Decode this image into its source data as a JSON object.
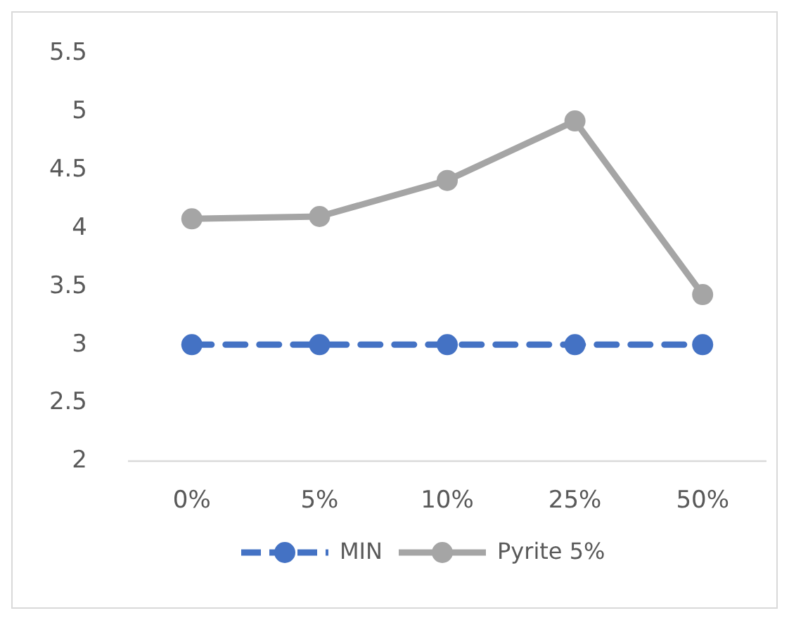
{
  "chart_data": {
    "type": "line",
    "categories": [
      "0%",
      "5%",
      "10%",
      "25%",
      "50%"
    ],
    "series": [
      {
        "name": "MIN",
        "color": "#4472c4",
        "values": [
          3,
          3,
          3,
          3,
          3
        ],
        "line_style": "dashed",
        "marker": "circle"
      },
      {
        "name": "Pyrite 5%",
        "color": "#a5a5a5",
        "values": [
          4.08,
          4.1,
          4.41,
          4.92,
          3.43
        ],
        "line_style": "solid",
        "marker": "circle"
      }
    ],
    "ylim": [
      2,
      5.5
    ],
    "yticks": [
      2,
      2.5,
      3,
      3.5,
      4,
      4.5,
      5,
      5.5
    ],
    "grid": false,
    "legend": "bottom"
  }
}
